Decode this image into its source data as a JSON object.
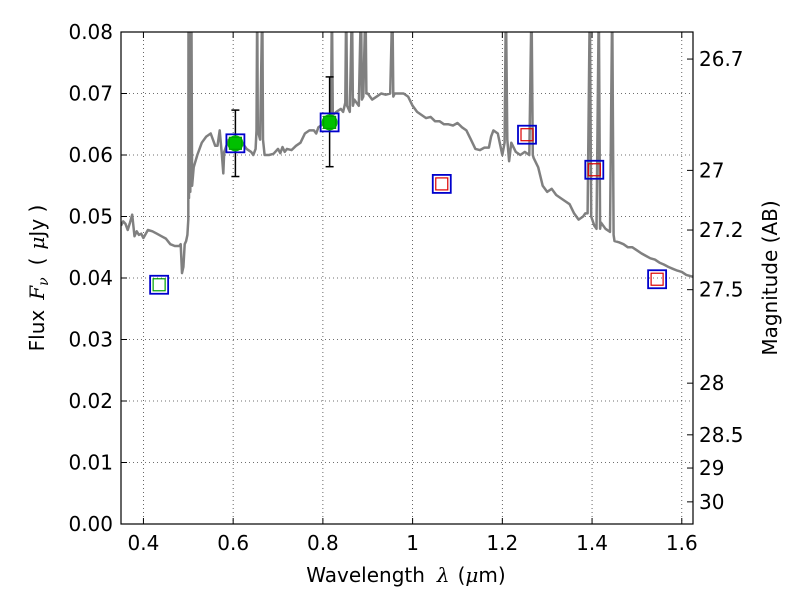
{
  "chart_data": {
    "type": "scatter",
    "xlabel_text": "Wavelength",
    "xlabel_symbol": "λ",
    "xlabel_unit_open": "(",
    "xlabel_unit_mu": "μ",
    "xlabel_unit_rest": "m)",
    "ylabel_text": "Flux",
    "ylabel_symbol_main": "F",
    "ylabel_symbol_sub": "ν",
    "ylabel_unit_open": "(",
    "ylabel_unit_mu": "μ",
    "ylabel_unit_rest": "Jy )",
    "ylabel_right": "Magnitude (AB)",
    "xlim": [
      0.35,
      1.625
    ],
    "ylim": [
      0.0,
      0.08
    ],
    "grid": true,
    "xticks": [
      {
        "value": 0.4,
        "label": "0.4"
      },
      {
        "value": 0.6,
        "label": "0.6"
      },
      {
        "value": 0.8,
        "label": "0.8"
      },
      {
        "value": 1.0,
        "label": "1"
      },
      {
        "value": 1.2,
        "label": "1.2"
      },
      {
        "value": 1.4,
        "label": "1.4"
      },
      {
        "value": 1.6,
        "label": "1.6"
      }
    ],
    "yticks": [
      {
        "value": 0.0,
        "label": "0.00"
      },
      {
        "value": 0.01,
        "label": "0.01"
      },
      {
        "value": 0.02,
        "label": "0.02"
      },
      {
        "value": 0.03,
        "label": "0.03"
      },
      {
        "value": 0.04,
        "label": "0.04"
      },
      {
        "value": 0.05,
        "label": "0.05"
      },
      {
        "value": 0.06,
        "label": "0.06"
      },
      {
        "value": 0.07,
        "label": "0.07"
      },
      {
        "value": 0.08,
        "label": "0.08"
      }
    ],
    "right_ticks": [
      {
        "flux": 0.0756,
        "label": "26.7"
      },
      {
        "flux": 0.0575,
        "label": "27"
      },
      {
        "flux": 0.0478,
        "label": "27.2"
      },
      {
        "flux": 0.0381,
        "label": "27.5"
      },
      {
        "flux": 0.0229,
        "label": "28"
      },
      {
        "flux": 0.0145,
        "label": "28.5"
      },
      {
        "flux": 0.0091,
        "label": "29"
      },
      {
        "flux": 0.0036,
        "label": "30"
      }
    ],
    "model_spectrum": {
      "name": "SED model",
      "color": "#808080",
      "points": [
        [
          0.35,
          0.0485
        ],
        [
          0.355,
          0.0492
        ],
        [
          0.36,
          0.0488
        ],
        [
          0.365,
          0.0478
        ],
        [
          0.37,
          0.049
        ],
        [
          0.375,
          0.0503
        ],
        [
          0.38,
          0.0468
        ],
        [
          0.385,
          0.0476
        ],
        [
          0.39,
          0.047
        ],
        [
          0.395,
          0.0472
        ],
        [
          0.4,
          0.0465
        ],
        [
          0.41,
          0.0478
        ],
        [
          0.42,
          0.0476
        ],
        [
          0.43,
          0.0472
        ],
        [
          0.44,
          0.0468
        ],
        [
          0.45,
          0.0464
        ],
        [
          0.46,
          0.0455
        ],
        [
          0.47,
          0.0452
        ],
        [
          0.48,
          0.0452
        ],
        [
          0.483,
          0.0455
        ],
        [
          0.486,
          0.0408
        ],
        [
          0.489,
          0.0418
        ],
        [
          0.492,
          0.0455
        ],
        [
          0.495,
          0.046
        ],
        [
          0.498,
          0.047
        ],
        [
          0.5,
          0.0495
        ],
        [
          0.5005,
          0.085
        ],
        [
          0.5015,
          0.053
        ],
        [
          0.503,
          0.085
        ],
        [
          0.5045,
          0.054
        ],
        [
          0.507,
          0.085
        ],
        [
          0.5085,
          0.055
        ],
        [
          0.512,
          0.058
        ],
        [
          0.52,
          0.06
        ],
        [
          0.53,
          0.062
        ],
        [
          0.54,
          0.063
        ],
        [
          0.55,
          0.0635
        ],
        [
          0.56,
          0.0615
        ],
        [
          0.565,
          0.0615
        ],
        [
          0.57,
          0.064
        ],
        [
          0.575,
          0.06
        ],
        [
          0.578,
          0.057
        ],
        [
          0.58,
          0.0605
        ],
        [
          0.585,
          0.0615
        ],
        [
          0.59,
          0.0625
        ],
        [
          0.595,
          0.0625
        ],
        [
          0.6,
          0.062
        ],
        [
          0.61,
          0.0615
        ],
        [
          0.615,
          0.0625
        ],
        [
          0.62,
          0.062
        ],
        [
          0.63,
          0.061
        ],
        [
          0.64,
          0.0605
        ],
        [
          0.645,
          0.06
        ],
        [
          0.65,
          0.061
        ],
        [
          0.652,
          0.064
        ],
        [
          0.6535,
          0.085
        ],
        [
          0.655,
          0.064
        ],
        [
          0.66,
          0.0625
        ],
        [
          0.665,
          0.085
        ],
        [
          0.6665,
          0.0625
        ],
        [
          0.67,
          0.06
        ],
        [
          0.68,
          0.06
        ],
        [
          0.69,
          0.0602
        ],
        [
          0.7,
          0.061
        ],
        [
          0.705,
          0.0603
        ],
        [
          0.71,
          0.0613
        ],
        [
          0.715,
          0.0605
        ],
        [
          0.72,
          0.061
        ],
        [
          0.73,
          0.0608
        ],
        [
          0.74,
          0.0615
        ],
        [
          0.75,
          0.062
        ],
        [
          0.76,
          0.0635
        ],
        [
          0.77,
          0.064
        ],
        [
          0.78,
          0.064
        ],
        [
          0.785,
          0.0635
        ],
        [
          0.79,
          0.0645
        ],
        [
          0.8,
          0.065
        ],
        [
          0.81,
          0.0655
        ],
        [
          0.818,
          0.066
        ],
        [
          0.82,
          0.085
        ],
        [
          0.822,
          0.0665
        ],
        [
          0.83,
          0.067
        ],
        [
          0.84,
          0.0675
        ],
        [
          0.845,
          0.067
        ],
        [
          0.85,
          0.0685
        ],
        [
          0.852,
          0.085
        ],
        [
          0.854,
          0.068
        ],
        [
          0.86,
          0.067
        ],
        [
          0.865,
          0.085
        ],
        [
          0.867,
          0.068
        ],
        [
          0.87,
          0.069
        ],
        [
          0.88,
          0.068
        ],
        [
          0.885,
          0.085
        ],
        [
          0.887,
          0.069
        ],
        [
          0.89,
          0.0695
        ],
        [
          0.895,
          0.085
        ],
        [
          0.897,
          0.07
        ],
        [
          0.9,
          0.07
        ],
        [
          0.91,
          0.069
        ],
        [
          0.92,
          0.0695
        ],
        [
          0.93,
          0.07
        ],
        [
          0.94,
          0.0698
        ],
        [
          0.95,
          0.07
        ],
        [
          0.955,
          0.085
        ],
        [
          0.957,
          0.0695
        ],
        [
          0.96,
          0.07
        ],
        [
          0.97,
          0.07
        ],
        [
          0.98,
          0.07
        ],
        [
          0.99,
          0.0695
        ],
        [
          1.0,
          0.068
        ],
        [
          1.01,
          0.067
        ],
        [
          1.02,
          0.0665
        ],
        [
          1.03,
          0.066
        ],
        [
          1.04,
          0.0662
        ],
        [
          1.05,
          0.0655
        ],
        [
          1.06,
          0.0655
        ],
        [
          1.07,
          0.065
        ],
        [
          1.08,
          0.065
        ],
        [
          1.09,
          0.0648
        ],
        [
          1.1,
          0.0652
        ],
        [
          1.11,
          0.0645
        ],
        [
          1.12,
          0.064
        ],
        [
          1.13,
          0.0625
        ],
        [
          1.14,
          0.061
        ],
        [
          1.15,
          0.0608
        ],
        [
          1.16,
          0.0612
        ],
        [
          1.17,
          0.0612
        ],
        [
          1.175,
          0.063
        ],
        [
          1.18,
          0.064
        ],
        [
          1.19,
          0.0635
        ],
        [
          1.2,
          0.06
        ],
        [
          1.205,
          0.062
        ],
        [
          1.208,
          0.085
        ],
        [
          1.211,
          0.0625
        ],
        [
          1.215,
          0.059
        ],
        [
          1.22,
          0.062
        ],
        [
          1.23,
          0.0605
        ],
        [
          1.24,
          0.06
        ],
        [
          1.25,
          0.0605
        ],
        [
          1.26,
          0.06
        ],
        [
          1.265,
          0.085
        ],
        [
          1.268,
          0.06
        ],
        [
          1.27,
          0.0595
        ],
        [
          1.28,
          0.058
        ],
        [
          1.29,
          0.055
        ],
        [
          1.3,
          0.054
        ],
        [
          1.31,
          0.0545
        ],
        [
          1.32,
          0.0535
        ],
        [
          1.33,
          0.053
        ],
        [
          1.34,
          0.0525
        ],
        [
          1.35,
          0.052
        ],
        [
          1.36,
          0.0505
        ],
        [
          1.37,
          0.0495
        ],
        [
          1.38,
          0.05
        ],
        [
          1.385,
          0.0505
        ],
        [
          1.39,
          0.0505
        ],
        [
          1.395,
          0.085
        ],
        [
          1.398,
          0.05
        ],
        [
          1.405,
          0.0485
        ],
        [
          1.41,
          0.048
        ],
        [
          1.415,
          0.085
        ],
        [
          1.418,
          0.048
        ],
        [
          1.42,
          0.049
        ],
        [
          1.43,
          0.048
        ],
        [
          1.44,
          0.0475
        ],
        [
          1.445,
          0.085
        ],
        [
          1.448,
          0.047
        ],
        [
          1.45,
          0.046
        ],
        [
          1.46,
          0.0458
        ],
        [
          1.47,
          0.0455
        ],
        [
          1.48,
          0.045
        ],
        [
          1.49,
          0.045
        ],
        [
          1.5,
          0.0445
        ],
        [
          1.51,
          0.044
        ],
        [
          1.52,
          0.0436
        ],
        [
          1.53,
          0.0432
        ],
        [
          1.54,
          0.043
        ],
        [
          1.55,
          0.0425
        ],
        [
          1.56,
          0.0422
        ],
        [
          1.57,
          0.0418
        ],
        [
          1.58,
          0.0415
        ],
        [
          1.59,
          0.0412
        ],
        [
          1.6,
          0.041
        ],
        [
          1.61,
          0.0405
        ],
        [
          1.625,
          0.0402
        ]
      ]
    },
    "observed_points": [
      {
        "name": "detection-1",
        "x": 0.605,
        "y": 0.0619,
        "yerr_low": 0.0054,
        "yerr_high": 0.0054,
        "color": "#00c000"
      },
      {
        "name": "detection-2",
        "x": 0.815,
        "y": 0.0653,
        "yerr_low": 0.0072,
        "yerr_high": 0.0074,
        "color": "#00c000"
      }
    ],
    "model_photometry": [
      {
        "name": "band-b",
        "x": 0.435,
        "y": 0.0389,
        "outer_color": "#0000cc",
        "inner_color": "#00a000"
      },
      {
        "name": "band-v",
        "x": 0.605,
        "y": 0.0619,
        "outer_color": "#0000cc",
        "inner_color": "#00a000"
      },
      {
        "name": "band-i",
        "x": 0.815,
        "y": 0.0653,
        "outer_color": "#0000cc",
        "inner_color": "#00a000"
      },
      {
        "name": "band-y",
        "x": 1.065,
        "y": 0.0553,
        "outer_color": "#0000cc",
        "inner_color": "#dd0000"
      },
      {
        "name": "band-j",
        "x": 1.255,
        "y": 0.0633,
        "outer_color": "#0000cc",
        "inner_color": "#dd0000"
      },
      {
        "name": "band-jh",
        "x": 1.405,
        "y": 0.0576,
        "outer_color": "#0000cc",
        "inner_color": "#dd0000"
      },
      {
        "name": "band-h",
        "x": 1.545,
        "y": 0.0398,
        "outer_color": "#0000cc",
        "inner_color": "#dd0000"
      }
    ]
  }
}
